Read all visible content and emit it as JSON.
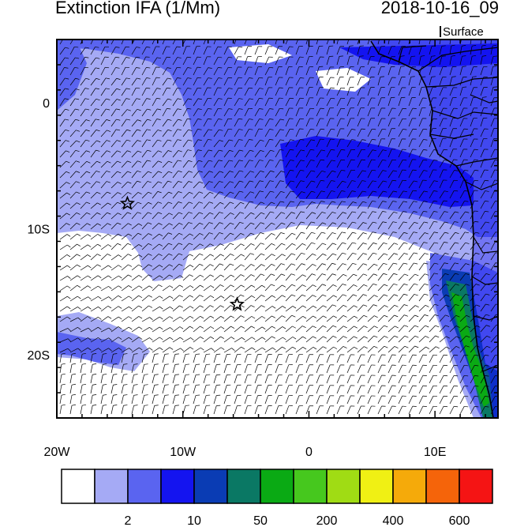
{
  "title_left": "Extinction IFA (1/Mm)",
  "title_right": "2018-10-16_09",
  "level_label": "Surface",
  "lon_ticks": [
    {
      "label": "20W",
      "lon": -20
    },
    {
      "label": "10W",
      "lon": -10
    },
    {
      "label": "0",
      "lon": 0
    },
    {
      "label": "10E",
      "lon": 10
    }
  ],
  "lat_ticks": [
    {
      "label": "0",
      "lat": 0
    },
    {
      "label": "10S",
      "lat": -10
    },
    {
      "label": "20S",
      "lat": -20
    }
  ],
  "extent": {
    "lon_min": -20,
    "lon_max": 15,
    "lat_min": -25,
    "lat_max": 5
  },
  "colorbar": {
    "colors": [
      "#ffffff",
      "#a5aaf5",
      "#5a64f0",
      "#1414f0",
      "#0a3cb4",
      "#0a7864",
      "#0aaa14",
      "#46c81e",
      "#a0dc14",
      "#f0f014",
      "#f5aa0a",
      "#f5640a",
      "#f51414"
    ],
    "labels": [
      {
        "text": "2",
        "after_index": 1
      },
      {
        "text": "10",
        "after_index": 3
      },
      {
        "text": "50",
        "after_index": 5
      },
      {
        "text": "200",
        "after_index": 7
      },
      {
        "text": "400",
        "after_index": 9
      },
      {
        "text": "600",
        "after_index": 11
      }
    ]
  },
  "markers": [
    {
      "name": "star-marker-ascension",
      "lon": -14.4,
      "lat": -8.0
    },
    {
      "name": "star-marker-st-helena",
      "lon": -5.7,
      "lat": -16.0
    }
  ]
}
